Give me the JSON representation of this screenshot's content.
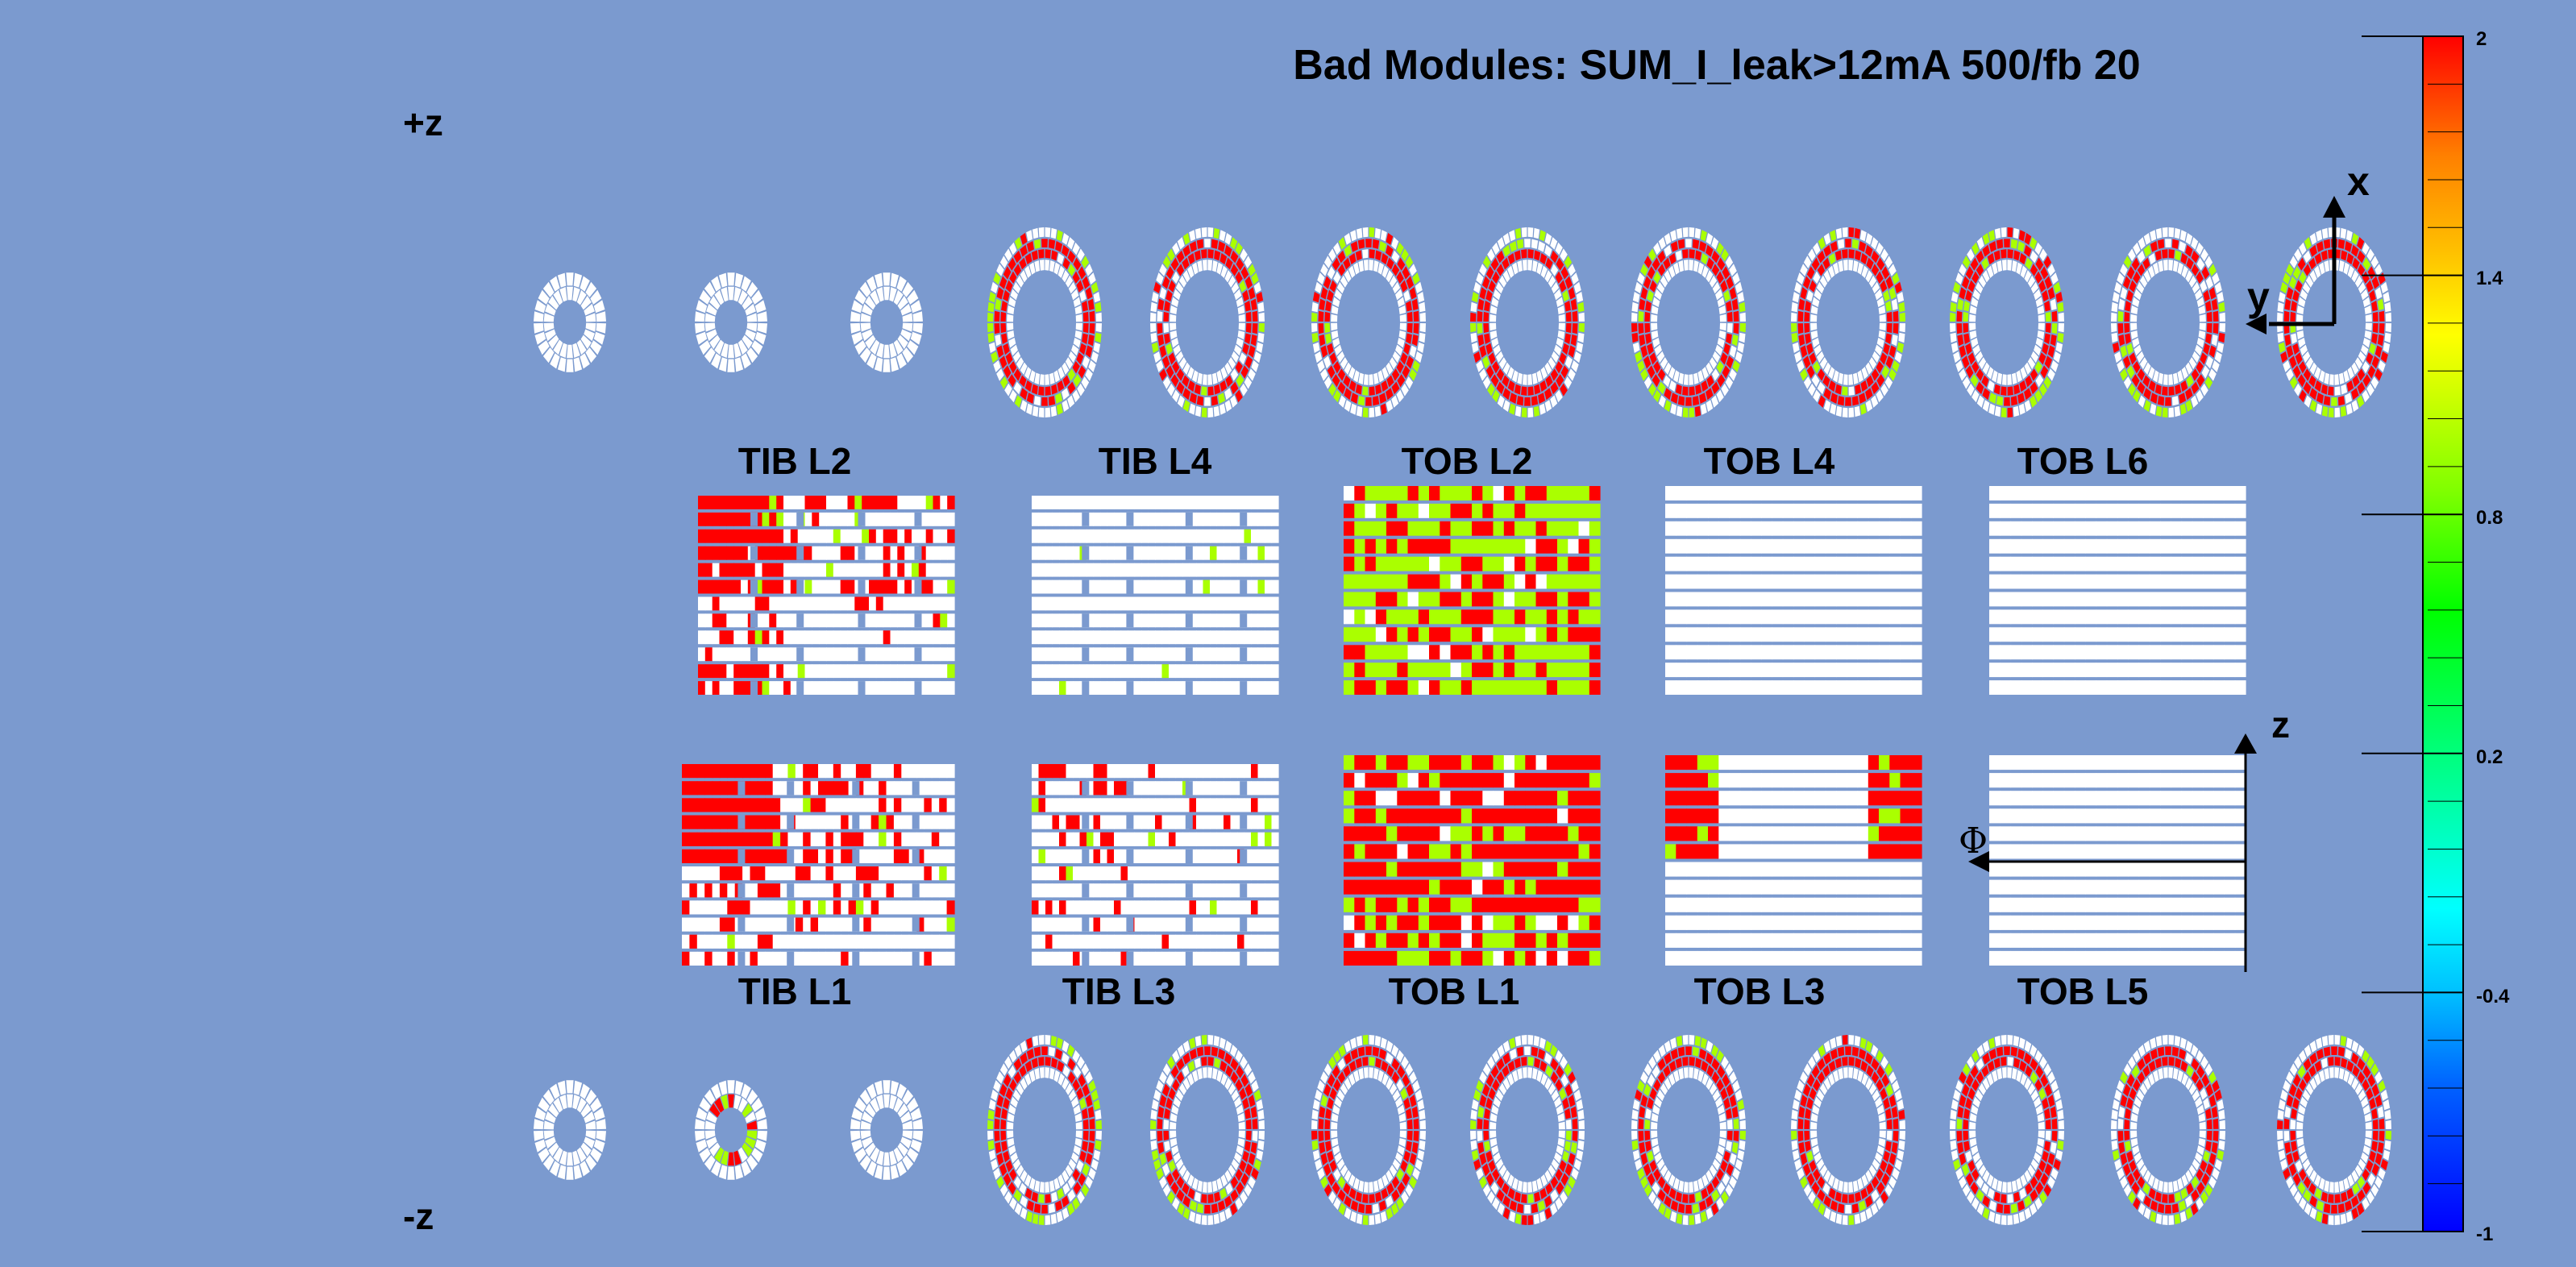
{
  "title": "Bad Modules: SUM_I_leak>12mA 500/fb 20",
  "side_labels": {
    "plus_z": "+z",
    "minus_z": "-z"
  },
  "axes": {
    "x": "x",
    "y": "y",
    "z": "z",
    "phi": "Φ"
  },
  "panels_top": [
    {
      "label": "TIB L2"
    },
    {
      "label": "TIB L4"
    },
    {
      "label": "TOB L2"
    },
    {
      "label": "TOB L4"
    },
    {
      "label": "TOB L6"
    }
  ],
  "panels_bottom": [
    {
      "label": "TIB L1"
    },
    {
      "label": "TIB L3"
    },
    {
      "label": "TOB L1"
    },
    {
      "label": "TOB L3"
    },
    {
      "label": "TOB L5"
    }
  ],
  "colorbar": {
    "min": -1,
    "max": 2,
    "ticks": [
      "2",
      "1.4",
      "0.8",
      "0.2",
      "-0.4",
      "-1"
    ],
    "palette": [
      "#0000ff",
      "#00a0ff",
      "#00ffff",
      "#00ff80",
      "#00ff00",
      "#80ff00",
      "#ffff00",
      "#ffa000",
      "#ff0000"
    ]
  },
  "colors": {
    "background": "#7B9ACF",
    "module_ok": "#ffffff",
    "bad_high": "#ff0000",
    "bad_mid": "#aaff00"
  }
}
